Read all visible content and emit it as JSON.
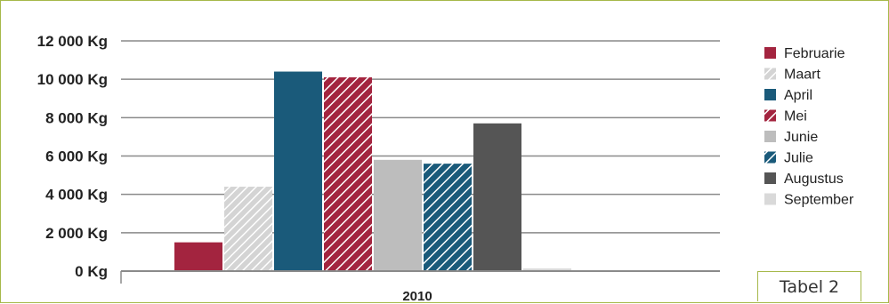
{
  "chart_data": {
    "type": "bar",
    "categories": [
      "2010"
    ],
    "series": [
      {
        "name": "Februarie",
        "values": [
          1500
        ],
        "color": "#a3243f",
        "pattern": "solid"
      },
      {
        "name": "Maart",
        "values": [
          4400
        ],
        "color": "#c8c8c8",
        "pattern": "hatch-light"
      },
      {
        "name": "April",
        "values": [
          10400
        ],
        "color": "#1a5a7a",
        "pattern": "solid"
      },
      {
        "name": "Mei",
        "values": [
          10100
        ],
        "color": "#a3243f",
        "pattern": "hatch-white"
      },
      {
        "name": "Junie",
        "values": [
          5800
        ],
        "color": "#bdbdbd",
        "pattern": "solid"
      },
      {
        "name": "Julie",
        "values": [
          5600
        ],
        "color": "#1a5a7a",
        "pattern": "hatch-white"
      },
      {
        "name": "Augustus",
        "values": [
          7700
        ],
        "color": "#555555",
        "pattern": "solid"
      },
      {
        "name": "September",
        "values": [
          0
        ],
        "color": "#d9d9d9",
        "pattern": "solid"
      }
    ],
    "yticks": [
      "0 Kg",
      "2 000 Kg",
      "4 000 Kg",
      "6 000 Kg",
      "8 000 Kg",
      "10 000 Kg",
      "12 000 Kg"
    ],
    "ylim": [
      0,
      12000
    ],
    "grid": true,
    "legend_position": "right",
    "title": "",
    "xlabel": "",
    "ylabel": ""
  },
  "tag_label": "Tabel 2"
}
